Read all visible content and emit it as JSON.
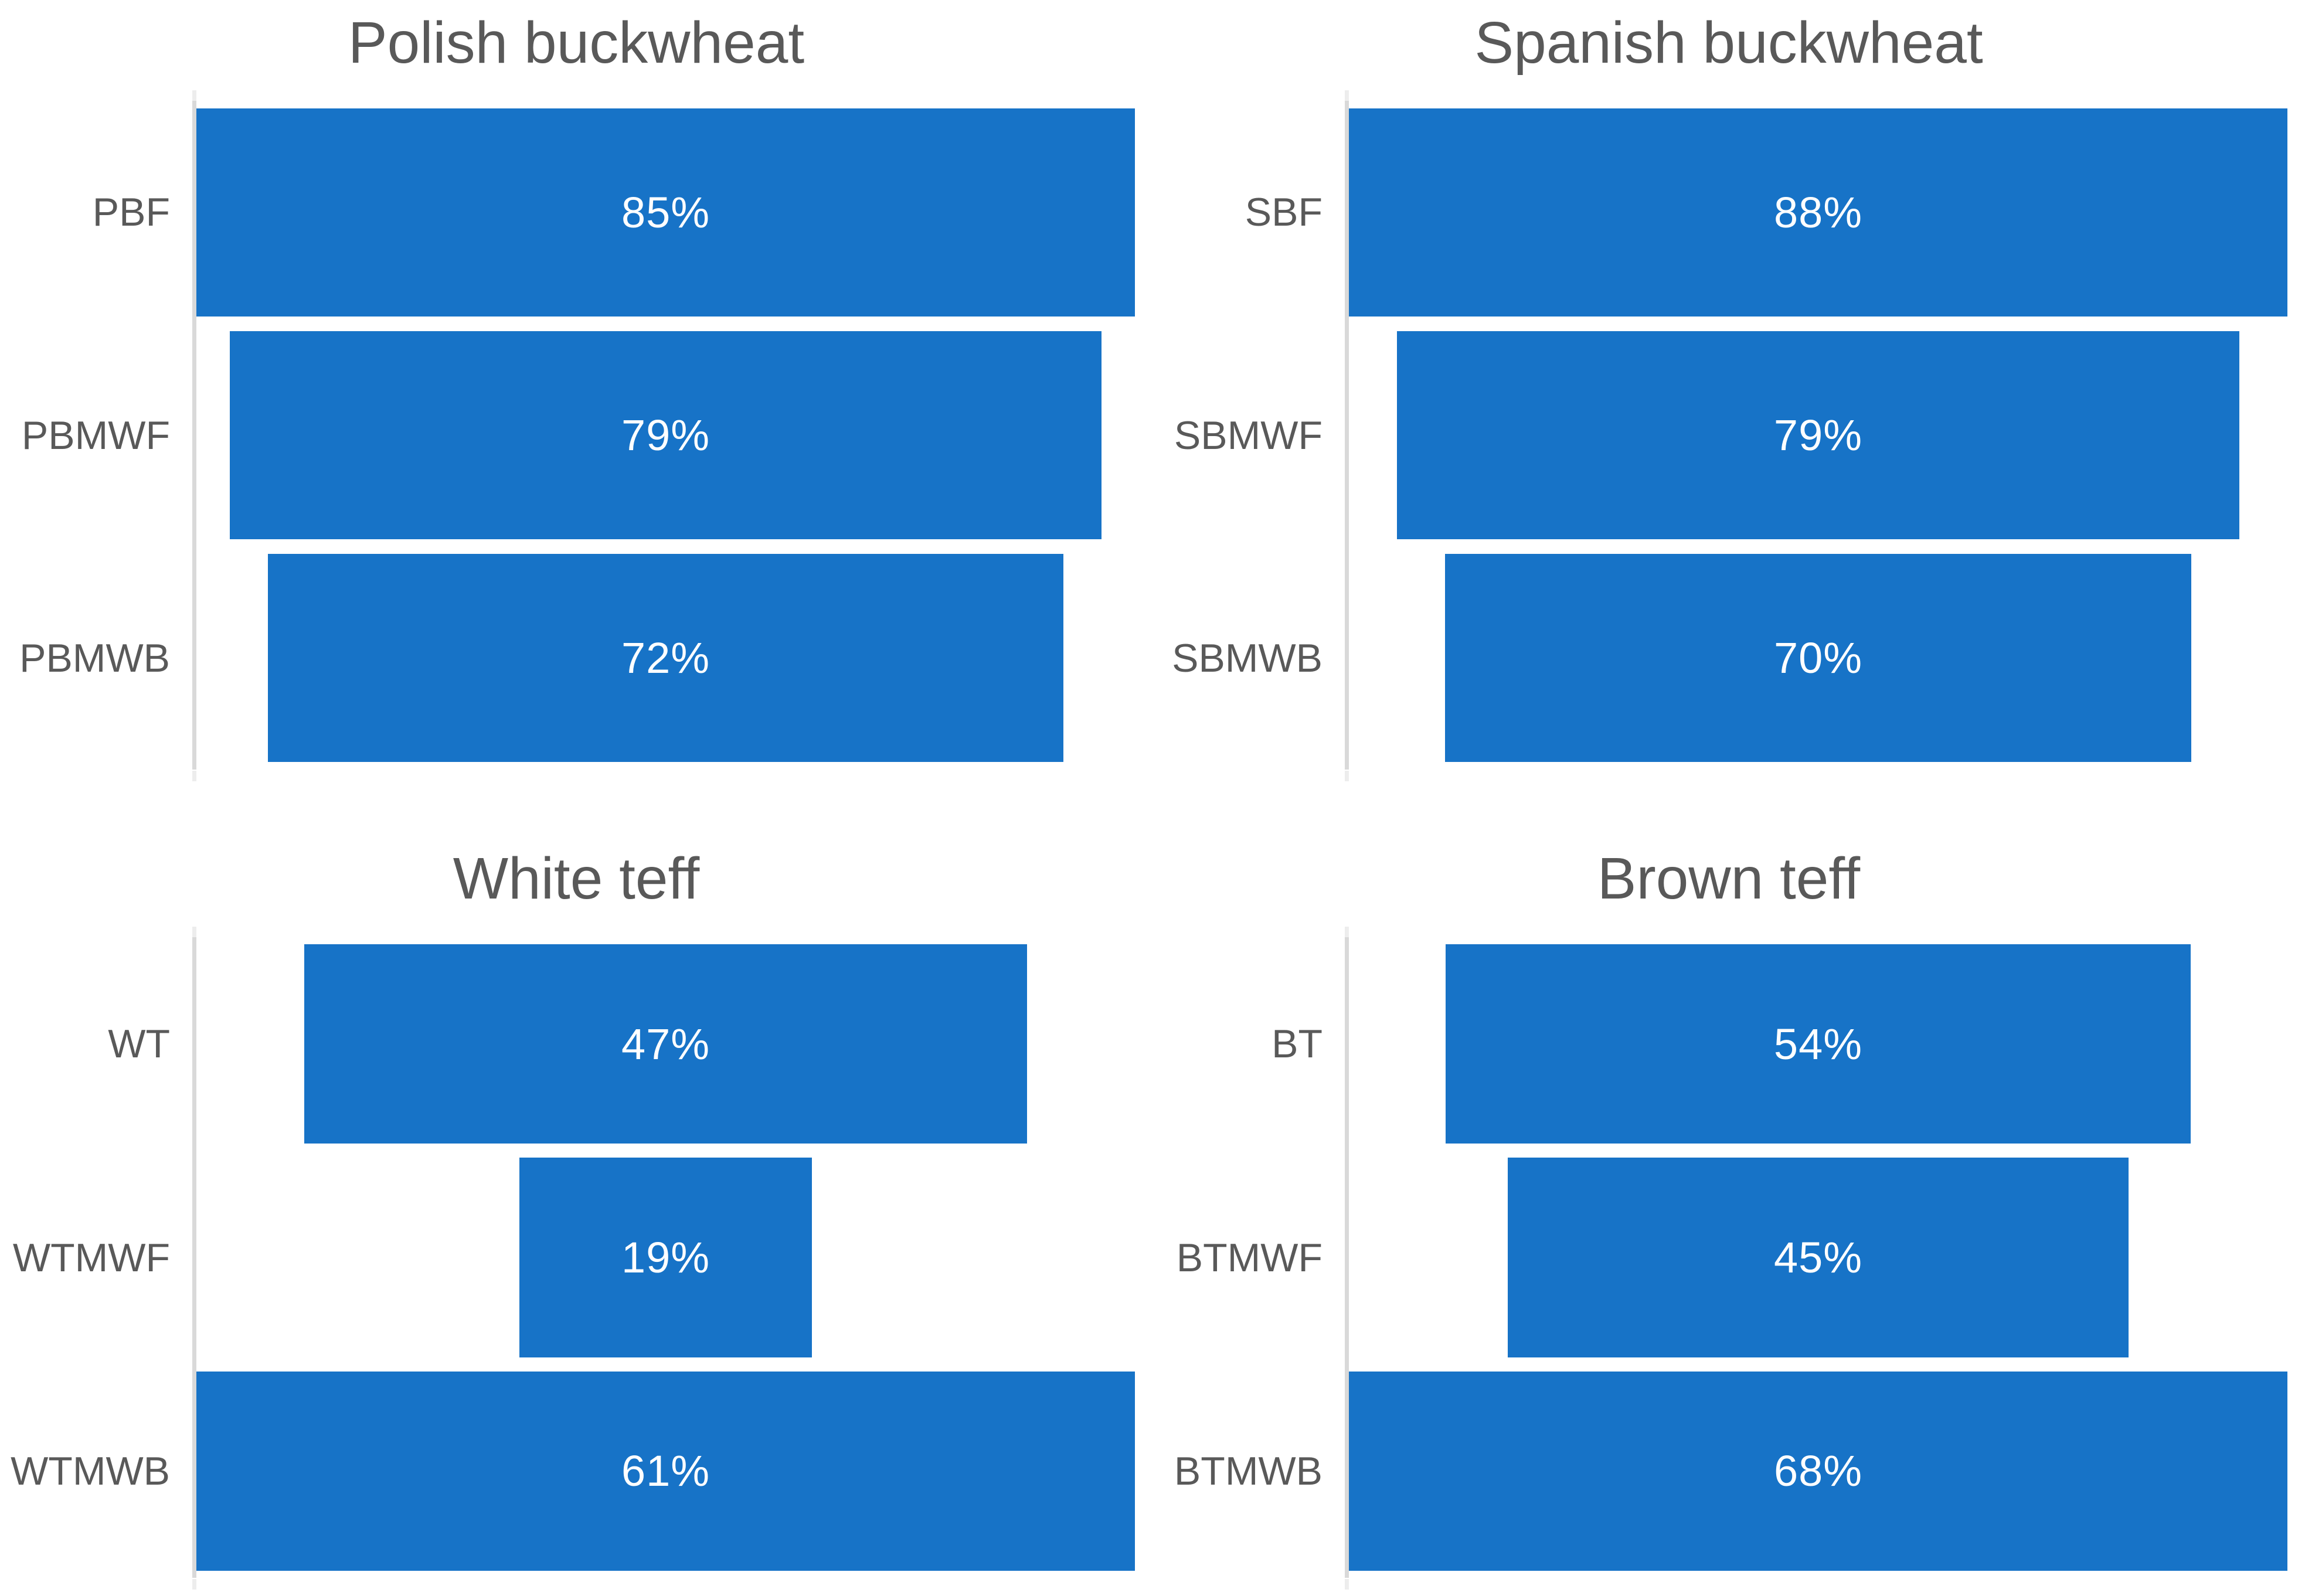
{
  "colors": {
    "background": "#FFFFFF",
    "bar_fill": "#1773C7",
    "title_text": "#595959",
    "category_text": "#595959",
    "data_label_text": "#FFFFFF",
    "axis_line": "#D9D9D9",
    "axis_tick": "#EDEDED"
  },
  "chart_data": [
    {
      "type": "bar",
      "subtype": "funnel-horizontal-centered",
      "title": "Polish buckwheat",
      "categories": [
        "PBF",
        "PBMWF",
        "PBMWB"
      ],
      "values": [
        85,
        79,
        72
      ],
      "data_labels": [
        "85%",
        "79%",
        "72%"
      ],
      "unit": "%",
      "xlim": [
        0,
        85
      ],
      "xlabel": "",
      "ylabel": "",
      "grid": "off",
      "legend": "none",
      "axis": "left-vertical-line-only"
    },
    {
      "type": "bar",
      "subtype": "funnel-horizontal-centered",
      "title": "Spanish buckwheat",
      "categories": [
        "SBF",
        "SBMWF",
        "SBMWB"
      ],
      "values": [
        88,
        79,
        70
      ],
      "data_labels": [
        "88%",
        "79%",
        "70%"
      ],
      "unit": "%",
      "xlim": [
        0,
        88
      ],
      "xlabel": "",
      "ylabel": "",
      "grid": "off",
      "legend": "none",
      "axis": "left-vertical-line-only"
    },
    {
      "type": "bar",
      "subtype": "funnel-horizontal-centered",
      "title": "White teff",
      "categories": [
        "WT",
        "WTMWF",
        "WTMWB"
      ],
      "values": [
        47,
        19,
        61
      ],
      "data_labels": [
        "47%",
        "19%",
        "61%"
      ],
      "unit": "%",
      "xlim": [
        0,
        61
      ],
      "xlabel": "",
      "ylabel": "",
      "grid": "off",
      "legend": "none",
      "axis": "left-vertical-line-only"
    },
    {
      "type": "bar",
      "subtype": "funnel-horizontal-centered",
      "title": "Brown teff",
      "categories": [
        "BT",
        "BTMWF",
        "BTMWB"
      ],
      "values": [
        54,
        45,
        68
      ],
      "data_labels": [
        "54%",
        "45%",
        "68%"
      ],
      "unit": "%",
      "xlim": [
        0,
        68
      ],
      "xlabel": "",
      "ylabel": "",
      "grid": "off",
      "legend": "none",
      "axis": "left-vertical-line-only"
    }
  ]
}
